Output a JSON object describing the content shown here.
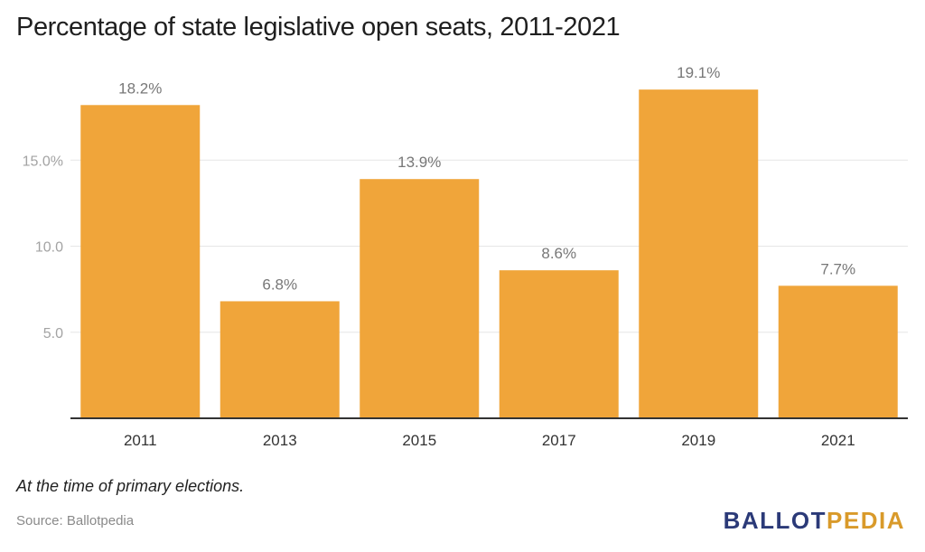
{
  "title": "Percentage of state legislative open seats, 2011-2021",
  "note": "At the time of primary elections.",
  "source": "Source: Ballotpedia",
  "logo": {
    "part1": "BALLOT",
    "part2": "PEDIA"
  },
  "colors": {
    "bar": "#f0a53a",
    "grid": "#e6e6e6",
    "axis": "#333333",
    "tick_label": "#a3a3a3",
    "value_label": "#777777",
    "logo_dark": "#2b3a78",
    "logo_accent": "#d99a2a"
  },
  "chart_data": {
    "type": "bar",
    "categories": [
      "2011",
      "2013",
      "2015",
      "2017",
      "2019",
      "2021"
    ],
    "values": [
      18.2,
      6.8,
      13.9,
      8.6,
      19.1,
      7.7
    ],
    "value_labels": [
      "18.2%",
      "6.8%",
      "13.9%",
      "8.6%",
      "19.1%",
      "7.7%"
    ],
    "yticks": [
      5,
      10,
      15
    ],
    "ytick_labels": [
      "5.0",
      "10.0",
      "15.0%"
    ],
    "ylim": [
      0,
      20
    ],
    "grid": true,
    "legend": "none",
    "xlabel": "",
    "ylabel": ""
  }
}
